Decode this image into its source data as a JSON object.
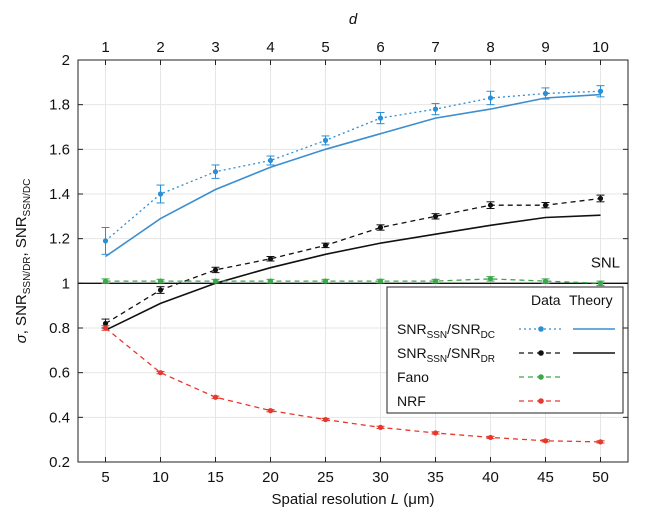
{
  "chart_data": {
    "type": "line",
    "xlabel": "Spatial resolution L (μm)",
    "xlabel_parts": {
      "pre": "Spatial resolution ",
      "var": "L",
      "post": " (μm)"
    },
    "top_xlabel": "d",
    "ylabel_parts": {
      "sigma": "σ",
      "sep": ", ",
      "snr": "SNR",
      "sub1": "SSN/DR",
      "comma": ", ",
      "snr2": "SNR",
      "sub2": "SSN/DC"
    },
    "x": [
      5,
      10,
      15,
      20,
      25,
      30,
      35,
      40,
      45,
      50
    ],
    "x_ticks": [
      "5",
      "10",
      "15",
      "20",
      "25",
      "30",
      "35",
      "40",
      "45",
      "50"
    ],
    "top_ticks": [
      "1",
      "2",
      "3",
      "4",
      "5",
      "6",
      "7",
      "8",
      "9",
      "10"
    ],
    "xlim": [
      2.5,
      52.5
    ],
    "ylim": [
      0.2,
      2.0
    ],
    "y_ticks": [
      "0.2",
      "0.4",
      "0.6",
      "0.8",
      "1",
      "1.2",
      "1.4",
      "1.6",
      "1.8",
      "2"
    ],
    "grid": true,
    "reference_line": {
      "y": 1.0,
      "label": "SNL"
    },
    "legend": {
      "position": "bottom-right",
      "header_data": "Data",
      "header_theory": "Theory"
    },
    "series": [
      {
        "name_main": "SNR",
        "name_sub1": "SSN",
        "name_mid": "/SNR",
        "name_sub2": "DC",
        "kind": "data",
        "color": "#2a8fd6",
        "dash": "dotted",
        "values": [
          1.19,
          1.4,
          1.5,
          1.55,
          1.64,
          1.74,
          1.78,
          1.83,
          1.85,
          1.86
        ],
        "errors": [
          0.06,
          0.04,
          0.03,
          0.02,
          0.02,
          0.025,
          0.025,
          0.03,
          0.025,
          0.025
        ]
      },
      {
        "kind": "theory",
        "color": "#3d8ecf",
        "values": [
          1.12,
          1.29,
          1.42,
          1.52,
          1.6,
          1.67,
          1.74,
          1.78,
          1.83,
          1.845
        ]
      },
      {
        "name_main": "SNR",
        "name_sub1": "SSN",
        "name_mid": "/SNR",
        "name_sub2": "DR",
        "kind": "data",
        "color": "#111111",
        "dash": "dashed",
        "values": [
          0.82,
          0.97,
          1.06,
          1.11,
          1.17,
          1.25,
          1.3,
          1.35,
          1.35,
          1.38
        ],
        "errors": [
          0.02,
          0.015,
          0.012,
          0.01,
          0.01,
          0.012,
          0.012,
          0.015,
          0.012,
          0.015
        ]
      },
      {
        "kind": "theory",
        "color": "#111111",
        "values": [
          0.79,
          0.91,
          1.0,
          1.07,
          1.13,
          1.18,
          1.22,
          1.26,
          1.295,
          1.305
        ]
      },
      {
        "name_main": "Fano",
        "kind": "data",
        "color": "#3aa84a",
        "dash": "dashed",
        "values": [
          1.01,
          1.01,
          1.01,
          1.01,
          1.01,
          1.01,
          1.01,
          1.02,
          1.01,
          1.0
        ],
        "errors": [
          0.01,
          0.008,
          0.008,
          0.008,
          0.008,
          0.008,
          0.008,
          0.01,
          0.01,
          0.01
        ]
      },
      {
        "name_main": "NRF",
        "kind": "data",
        "color": "#e8382e",
        "dash": "dashed",
        "values": [
          0.8,
          0.6,
          0.49,
          0.43,
          0.39,
          0.355,
          0.33,
          0.31,
          0.295,
          0.29
        ],
        "errors": [
          0.01,
          0.005,
          0.005,
          0.005,
          0.005,
          0.005,
          0.005,
          0.005,
          0.005,
          0.005
        ]
      }
    ]
  }
}
